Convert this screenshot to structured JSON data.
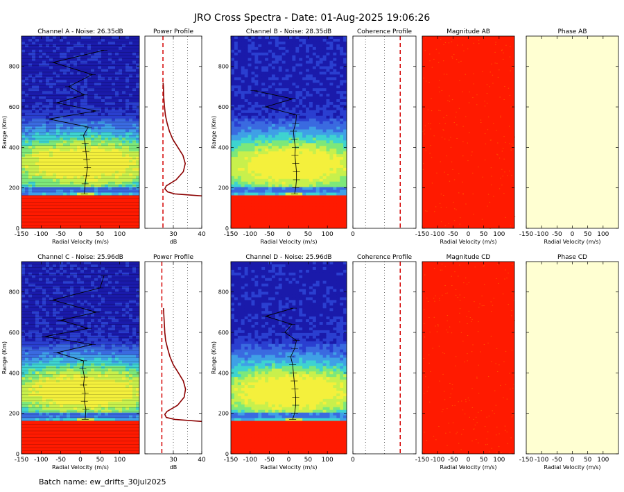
{
  "title": "JRO Cross Spectra - Date: 01-Aug-2025 19:06:26",
  "footer": "Batch name: ew_drifts_30jul2025",
  "colors": {
    "red_fill": "#ff1a00",
    "phase_fill": "#ffffd2",
    "noise_line": "#d40000",
    "profile_line": "#8b0000",
    "cmap": [
      "#1a1aaa",
      "#2a3fd0",
      "#3a6ae0",
      "#3fa0e6",
      "#3ed3d0",
      "#7de87a",
      "#c8f04c",
      "#f4f03c"
    ]
  },
  "chart_data": [
    {
      "type": "heatmap",
      "title": "Channel A - Noise: 26.35dB",
      "xlabel": "Radial Velocity (m/s)",
      "ylabel": "Range (Km)",
      "xlim": [
        -150,
        150
      ],
      "ylim": [
        0,
        950
      ],
      "xticks": [
        -150,
        -100,
        -50,
        0,
        50,
        100
      ],
      "yticks": [
        0,
        200,
        400,
        600,
        800
      ],
      "noise_db": 26.35,
      "sat_below_km": 160,
      "echo_center_km": 320,
      "drift_profile": {
        "range_km": [
          170,
          220,
          260,
          300,
          340,
          380,
          420,
          460,
          500,
          540,
          580,
          620,
          660,
          700,
          760,
          820,
          880
        ],
        "velocity": [
          10,
          12,
          15,
          18,
          16,
          14,
          12,
          8,
          20,
          -80,
          40,
          -60,
          10,
          -30,
          30,
          -70,
          60
        ]
      }
    },
    {
      "type": "line",
      "title": "Power Profile",
      "xlabel": "dB",
      "xlim": [
        20,
        40
      ],
      "ylim": [
        0,
        950
      ],
      "xticks": [
        30,
        40
      ],
      "noise_db": 26.35,
      "dotted_x": [
        30,
        35
      ],
      "profile": {
        "range_km": [
          160,
          170,
          180,
          195,
          210,
          240,
          280,
          320,
          360,
          400,
          440,
          480,
          520,
          560,
          600,
          650,
          700,
          720
        ],
        "db": [
          40,
          30.5,
          28,
          27,
          27.5,
          31,
          33.5,
          34.2,
          33.4,
          31.6,
          29.8,
          28.6,
          27.8,
          27.2,
          26.9,
          26.6,
          26.5,
          26.4
        ]
      }
    },
    {
      "type": "heatmap",
      "title": "Channel B - Noise: 28.35dB",
      "xlabel": "Radial Velocity (m/s)",
      "ylabel": "Range (Km)",
      "xlim": [
        -150,
        150
      ],
      "ylim": [
        0,
        950
      ],
      "xticks": [
        -150,
        -100,
        -50,
        0,
        50,
        100
      ],
      "yticks": [
        0,
        200,
        400,
        600,
        800
      ],
      "noise_db": 28.35,
      "sat_below_km": 160,
      "echo_center_km": 310,
      "drift_profile": {
        "range_km": [
          170,
          200,
          240,
          280,
          320,
          360,
          400,
          440,
          480,
          520,
          560,
          600,
          640,
          680
        ],
        "velocity": [
          15,
          18,
          20,
          20,
          18,
          16,
          17,
          14,
          12,
          18,
          20,
          -60,
          10,
          -90
        ]
      }
    },
    {
      "type": "line",
      "title": "Coherence Profile",
      "xlabel": "",
      "xlim": [
        0,
        1
      ],
      "ylim": [
        0,
        950
      ],
      "xticks": [
        0
      ],
      "noise_x": 0.75
    },
    {
      "type": "heatmap",
      "title": "Magnitude AB",
      "xlabel": "Radial Velocity (m/s)",
      "xlim": [
        -150,
        150
      ],
      "ylim": [
        0,
        950
      ],
      "xticks": [
        -150,
        -100,
        -50,
        0,
        50,
        100
      ]
    },
    {
      "type": "heatmap",
      "title": "Phase AB",
      "xlabel": "Radial Velocity (m/s)",
      "xlim": [
        -150,
        150
      ],
      "ylim": [
        0,
        950
      ],
      "xticks": [
        -150,
        -100,
        -50,
        0,
        50,
        100
      ]
    },
    {
      "type": "heatmap",
      "title": "Channel C - Noise: 25.96dB",
      "xlabel": "Radial Velocity (m/s)",
      "ylabel": "Range (Km)",
      "xlim": [
        -150,
        150
      ],
      "ylim": [
        0,
        950
      ],
      "xticks": [
        -150,
        -100,
        -50,
        0,
        50,
        100
      ],
      "yticks": [
        0,
        200,
        400,
        600,
        800
      ],
      "noise_db": 25.96,
      "sat_below_km": 160,
      "echo_center_km": 310,
      "drift_profile": {
        "range_km": [
          170,
          220,
          260,
          300,
          340,
          380,
          420,
          460,
          500,
          540,
          580,
          620,
          660,
          700,
          760,
          820,
          880
        ],
        "velocity": [
          12,
          14,
          10,
          12,
          8,
          10,
          6,
          8,
          -60,
          30,
          -90,
          20,
          -50,
          40,
          -70,
          50,
          60
        ]
      }
    },
    {
      "type": "line",
      "title": "Power Profile",
      "xlabel": "dB",
      "xlim": [
        20,
        40
      ],
      "ylim": [
        0,
        950
      ],
      "xticks": [
        30,
        40
      ],
      "noise_db": 25.96,
      "dotted_x": [
        30,
        35
      ],
      "profile": {
        "range_km": [
          160,
          170,
          180,
          195,
          210,
          240,
          280,
          320,
          360,
          400,
          440,
          480,
          520,
          560,
          600,
          650,
          700,
          720
        ],
        "db": [
          40,
          30.5,
          27.5,
          27,
          27.8,
          31.5,
          33.8,
          34.3,
          33.5,
          31.8,
          30,
          28.8,
          28,
          27.3,
          27,
          26.8,
          26.6,
          26.5
        ]
      }
    },
    {
      "type": "heatmap",
      "title": "Channel D - Noise: 25.96dB",
      "xlabel": "Radial Velocity (m/s)",
      "ylabel": "Range (Km)",
      "xlim": [
        -150,
        150
      ],
      "ylim": [
        0,
        950
      ],
      "xticks": [
        -150,
        -100,
        -50,
        0,
        50,
        100
      ],
      "yticks": [
        0,
        200,
        400,
        600,
        800
      ],
      "noise_db": 25.96,
      "sat_below_km": 160,
      "echo_center_km": 305,
      "drift_profile": {
        "range_km": [
          170,
          200,
          240,
          280,
          320,
          360,
          400,
          440,
          480,
          520,
          560,
          600,
          640,
          680,
          720
        ],
        "velocity": [
          10,
          15,
          18,
          18,
          16,
          14,
          12,
          10,
          5,
          15,
          20,
          -10,
          8,
          -60,
          12
        ]
      }
    },
    {
      "type": "line",
      "title": "Coherence Profile",
      "xlabel": "",
      "xlim": [
        0,
        1
      ],
      "ylim": [
        0,
        950
      ],
      "xticks": [
        0
      ],
      "noise_x": 0.75
    },
    {
      "type": "heatmap",
      "title": "Magnitude CD",
      "xlabel": "Radial Velocity (m/s)",
      "xlim": [
        -150,
        150
      ],
      "ylim": [
        0,
        950
      ],
      "xticks": [
        -150,
        -100,
        -50,
        0,
        50,
        100
      ]
    },
    {
      "type": "heatmap",
      "title": "Phase CD",
      "xlabel": "Radial Velocity (m/s)",
      "xlim": [
        -150,
        150
      ],
      "ylim": [
        0,
        950
      ],
      "xticks": [
        -150,
        -100,
        -50,
        0,
        50,
        100
      ]
    }
  ]
}
